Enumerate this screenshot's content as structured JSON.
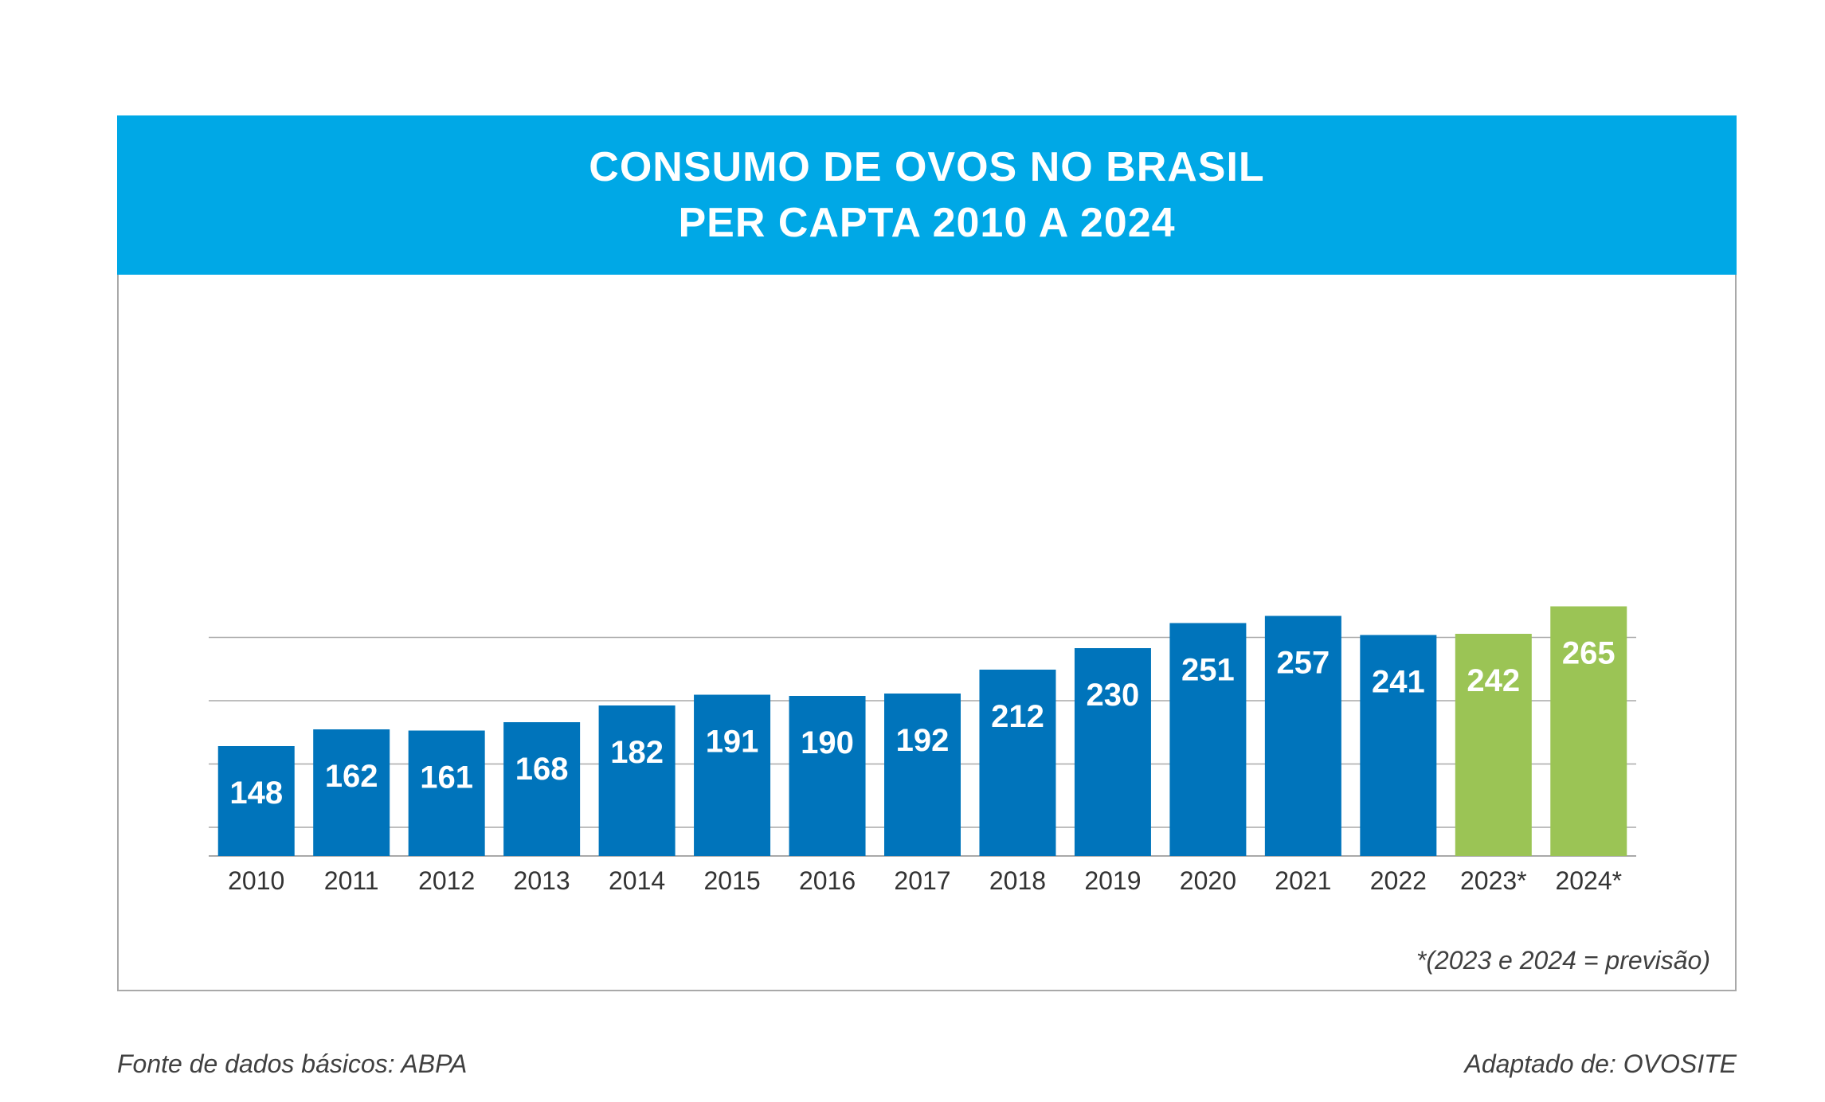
{
  "header": {
    "title_line1": "CONSUMO DE OVOS NO BRASIL",
    "title_line2": "PER CAPTA 2010 A 2024"
  },
  "footnote": "*(2023 e 2024 = previsão)",
  "source": "Fonte de dados básicos: ABPA",
  "adapted": "Adaptado de: OVOSITE",
  "colors": {
    "header": "#00a8e6",
    "bar_actual": "#0074bb",
    "bar_forecast": "#9bc455",
    "grid": "#a9a9a9"
  },
  "chart_data": {
    "type": "bar",
    "title": "CONSUMO DE OVOS NO BRASIL PER CAPTA 2010 A 2024",
    "categories": [
      "2010",
      "2011",
      "2012",
      "2013",
      "2014",
      "2015",
      "2016",
      "2017",
      "2018",
      "2019",
      "2020",
      "2021",
      "2022",
      "2023*",
      "2024*"
    ],
    "values": [
      148,
      162,
      161,
      168,
      182,
      191,
      190,
      192,
      212,
      230,
      251,
      257,
      241,
      242,
      265
    ],
    "forecast": [
      false,
      false,
      false,
      false,
      false,
      false,
      false,
      false,
      false,
      false,
      false,
      false,
      false,
      true,
      true
    ],
    "ylim": [
      0,
      270
    ],
    "grid": true,
    "y_tick_labels_visible": false,
    "data_labels": true
  }
}
